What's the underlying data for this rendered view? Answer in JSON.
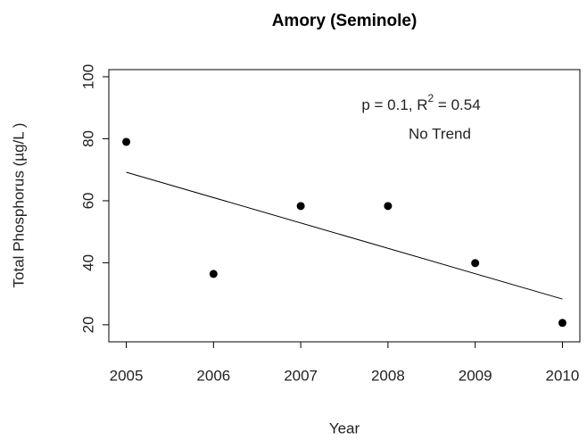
{
  "chart_data": {
    "type": "scatter",
    "title": "Amory (Seminole)",
    "xlabel": "Year",
    "ylabel": "Total Phosphorus (µg/L )",
    "x": [
      2005,
      2006,
      2007,
      2008,
      2009,
      2010
    ],
    "series": [
      {
        "name": "Total Phosphorus",
        "color": "#000000",
        "values": [
          79,
          36.4,
          58.3,
          58.3,
          39.9,
          20.6
        ]
      }
    ],
    "trend": {
      "x": [
        2005,
        2010
      ],
      "values": [
        69.2,
        28.3
      ],
      "color": "#000000"
    },
    "annotation": {
      "stat": "p = 0.1, R",
      "sup": "2",
      "rest": " = 0.54",
      "result": "No Trend"
    },
    "xlim": [
      2004.8,
      2010.2
    ],
    "xticks": [
      2005,
      2006,
      2007,
      2008,
      2009,
      2010
    ],
    "ylim": [
      14.5,
      102.3
    ],
    "yticks": [
      20,
      40,
      60,
      80,
      100
    ]
  }
}
